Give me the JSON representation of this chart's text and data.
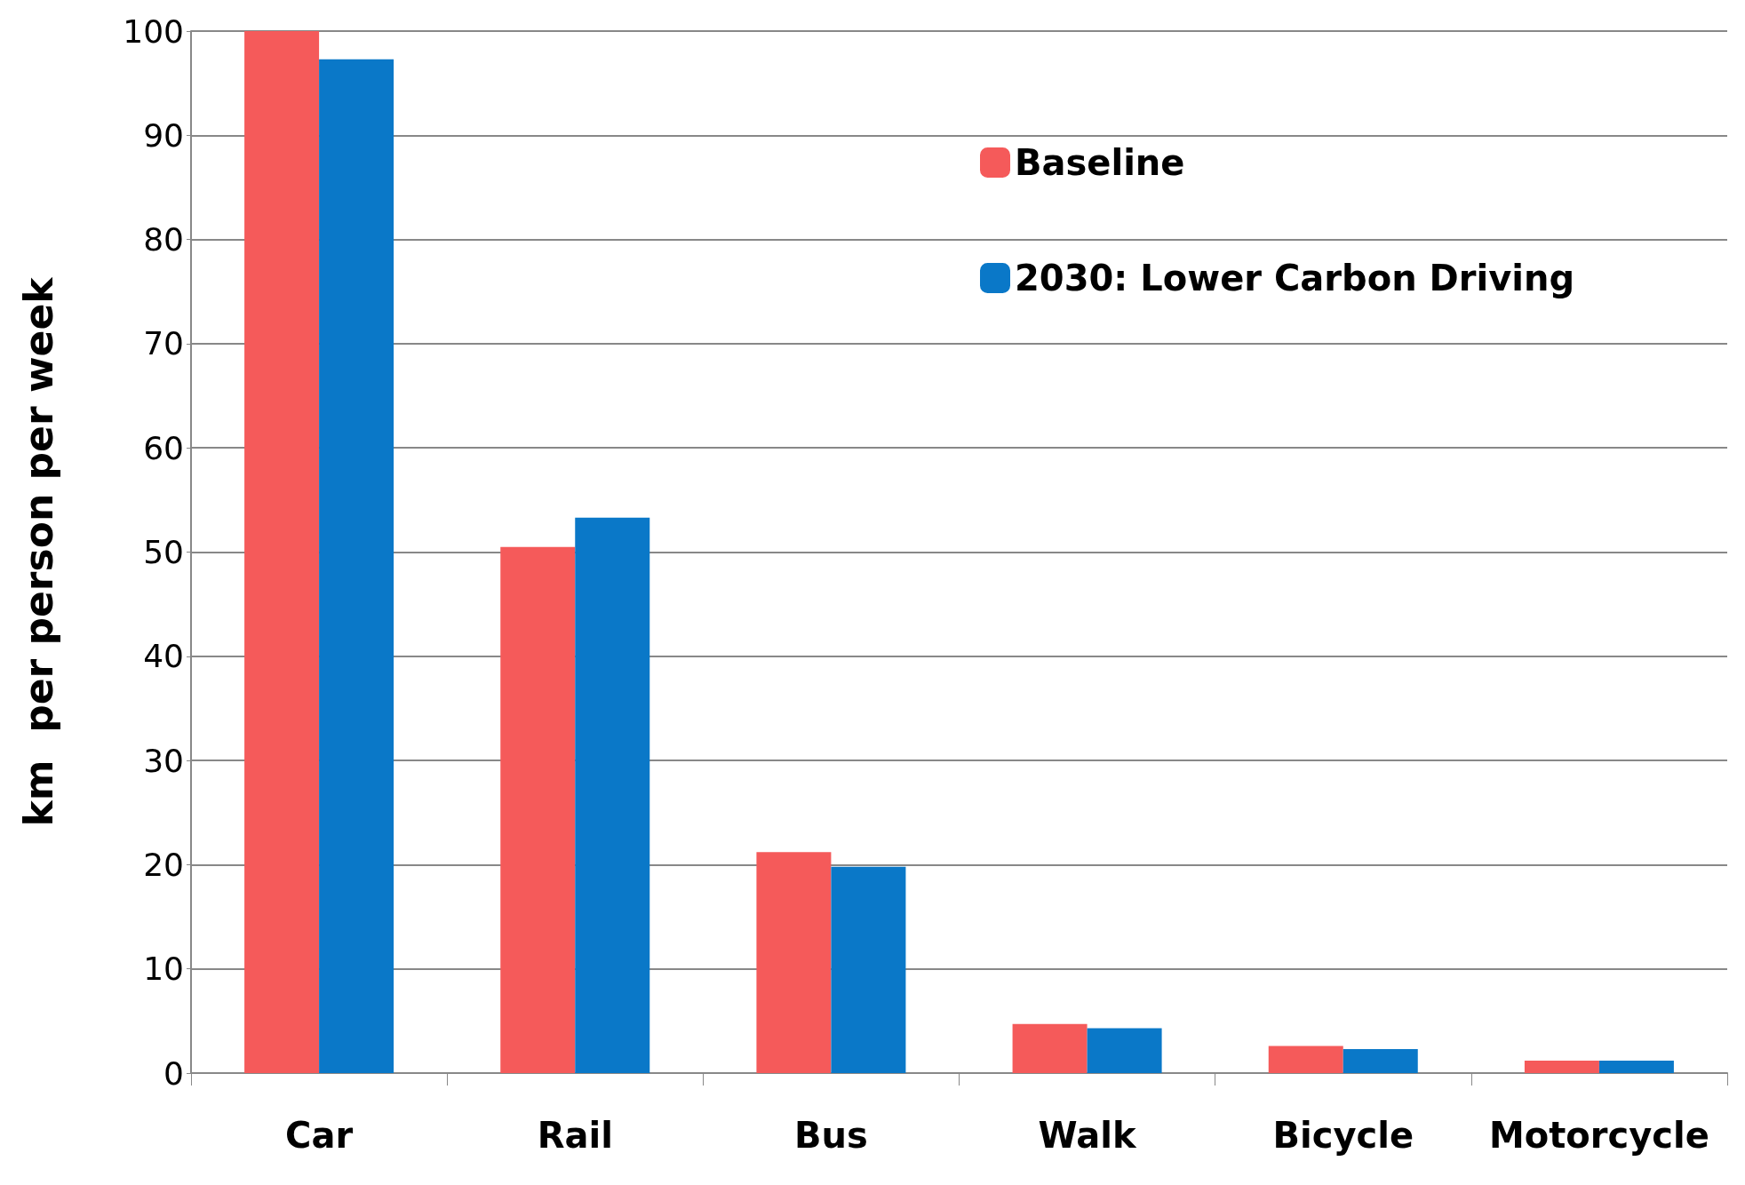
{
  "chart_data": {
    "type": "bar",
    "ylabel": "km  per person per week",
    "categories": [
      "Car",
      "Rail",
      "Bus",
      "Walk",
      "Bicycle",
      "Motorcycle"
    ],
    "series": [
      {
        "name": "Baseline",
        "color": "#f55a5a",
        "values": [
          100,
          50.5,
          21.2,
          4.7,
          2.6,
          1.2
        ]
      },
      {
        "name": "2030: Lower Carbon Driving",
        "color": "#0a78c8",
        "values": [
          97.3,
          53.3,
          19.8,
          4.3,
          2.3,
          1.2
        ]
      }
    ],
    "ylim": [
      0,
      100
    ],
    "yticks": [
      0,
      10,
      20,
      30,
      40,
      50,
      60,
      70,
      80,
      90,
      100
    ],
    "grid": "y",
    "legend": "top right"
  }
}
